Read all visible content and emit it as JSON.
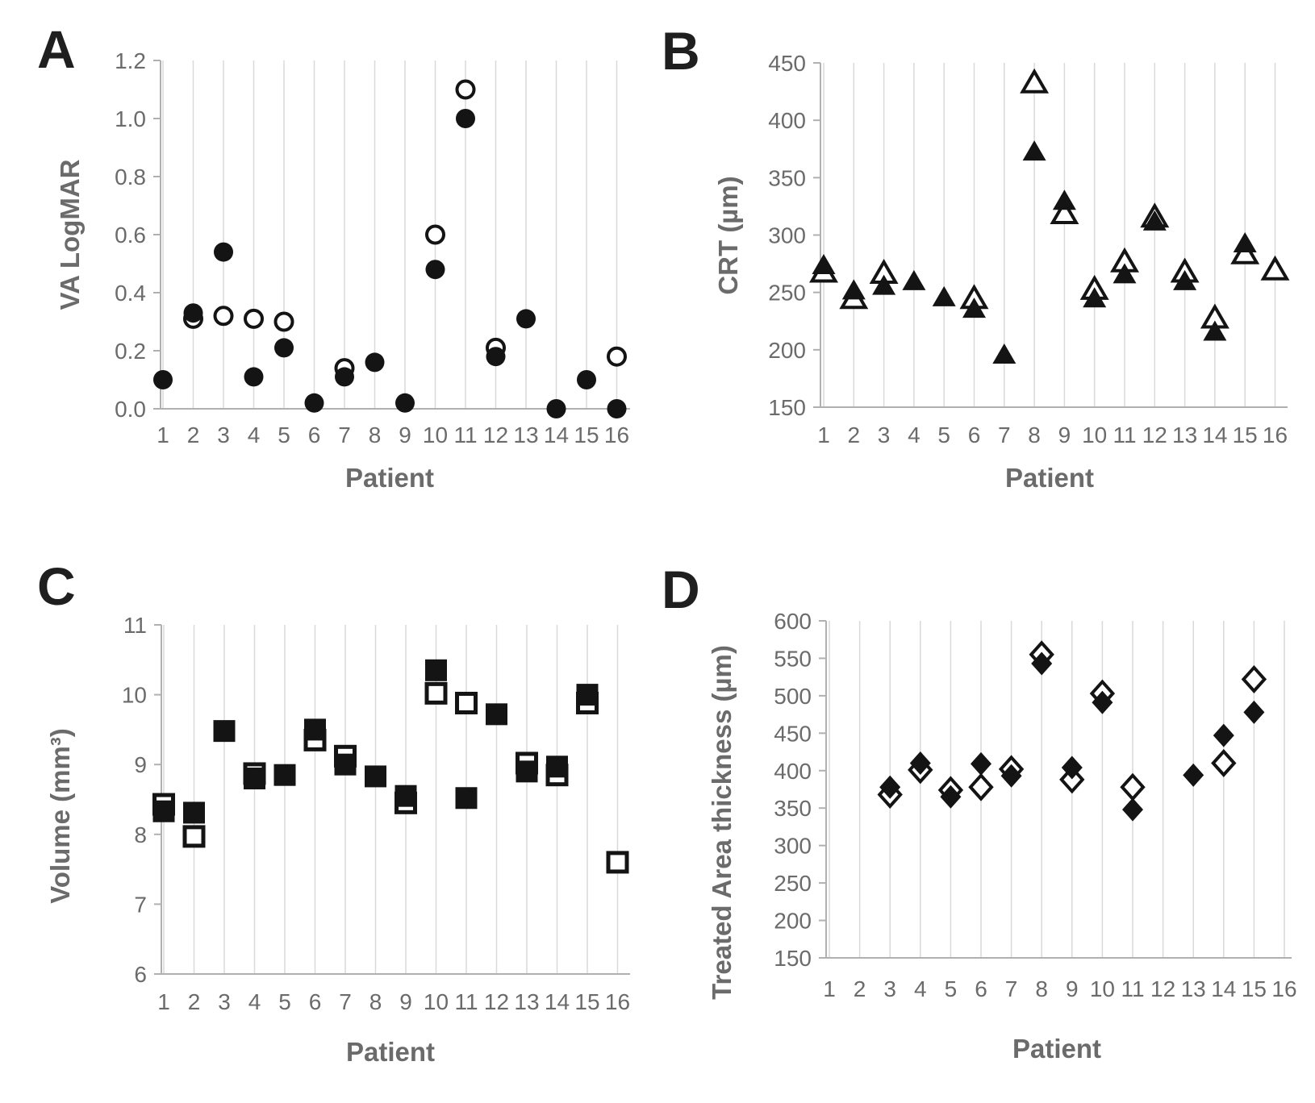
{
  "figure": {
    "background": "#ffffff",
    "marker_color": "#141414",
    "grid_color": "#d9d9d9",
    "axis_color": "#b0b0b0",
    "text_color": "#6b6b6b"
  },
  "chart_data": [
    {
      "id": "A",
      "panel_label": "A",
      "type": "scatter",
      "marker": "circle",
      "xlabel": "Patient",
      "ylabel": "VA LogMAR",
      "ylim": [
        0.0,
        1.2
      ],
      "grid": "vertical-only",
      "legend": "none",
      "yticks": [
        {
          "v": 0.0,
          "label": "0.0"
        },
        {
          "v": 0.2,
          "label": "0.2"
        },
        {
          "v": 0.4,
          "label": "0.4"
        },
        {
          "v": 0.6,
          "label": "0.6"
        },
        {
          "v": 0.8,
          "label": "0.8"
        },
        {
          "v": 1.0,
          "label": "1.0"
        },
        {
          "v": 1.2,
          "label": "1.2"
        }
      ],
      "categories": [
        "1",
        "2",
        "3",
        "4",
        "5",
        "6",
        "7",
        "8",
        "9",
        "10",
        "11",
        "12",
        "13",
        "14",
        "15",
        "16"
      ],
      "series": [
        {
          "name": "open",
          "marker_style": "open",
          "values": [
            null,
            0.31,
            0.32,
            0.31,
            0.3,
            null,
            0.14,
            null,
            null,
            0.6,
            1.1,
            0.21,
            null,
            null,
            null,
            0.18
          ]
        },
        {
          "name": "filled",
          "marker_style": "filled",
          "values": [
            0.1,
            0.33,
            0.54,
            0.11,
            0.21,
            0.02,
            0.11,
            0.16,
            0.02,
            0.48,
            1.0,
            0.18,
            0.31,
            0.0,
            0.1,
            0.0
          ]
        }
      ]
    },
    {
      "id": "B",
      "panel_label": "B",
      "type": "scatter",
      "marker": "triangle",
      "xlabel": "Patient",
      "ylabel": "CRT (µm)",
      "ylim": [
        150,
        450
      ],
      "grid": "vertical-only",
      "legend": "none",
      "yticks": [
        {
          "v": 150,
          "label": "150"
        },
        {
          "v": 200,
          "label": "200"
        },
        {
          "v": 250,
          "label": "250"
        },
        {
          "v": 300,
          "label": "300"
        },
        {
          "v": 350,
          "label": "350"
        },
        {
          "v": 400,
          "label": "400"
        },
        {
          "v": 450,
          "label": "450"
        }
      ],
      "categories": [
        "1",
        "2",
        "3",
        "4",
        "5",
        "6",
        "7",
        "8",
        "9",
        "10",
        "11",
        "12",
        "13",
        "14",
        "15",
        "16"
      ],
      "series": [
        {
          "name": "open",
          "marker_style": "open",
          "values": [
            268,
            245,
            267,
            null,
            null,
            245,
            null,
            433,
            319,
            253,
            277,
            316,
            268,
            228,
            284,
            270
          ]
        },
        {
          "name": "filled",
          "marker_style": "filled",
          "values": [
            274,
            252,
            256,
            260,
            246,
            236,
            196,
            373,
            330,
            245,
            266,
            312,
            260,
            216,
            293,
            null
          ]
        }
      ]
    },
    {
      "id": "C",
      "panel_label": "C",
      "type": "scatter",
      "marker": "square",
      "xlabel": "Patient",
      "ylabel": "Volume (mm³)",
      "ylim": [
        6,
        11
      ],
      "grid": "vertical-only",
      "legend": "none",
      "yticks": [
        {
          "v": 6,
          "label": "6"
        },
        {
          "v": 7,
          "label": "7"
        },
        {
          "v": 8,
          "label": "8"
        },
        {
          "v": 9,
          "label": "9"
        },
        {
          "v": 10,
          "label": "10"
        },
        {
          "v": 11,
          "label": "11"
        }
      ],
      "categories": [
        "1",
        "2",
        "3",
        "4",
        "5",
        "6",
        "7",
        "8",
        "9",
        "10",
        "11",
        "12",
        "13",
        "14",
        "15",
        "16"
      ],
      "series": [
        {
          "name": "open",
          "marker_style": "open",
          "values": [
            8.43,
            7.97,
            null,
            8.87,
            null,
            9.35,
            9.12,
            null,
            8.45,
            10.02,
            9.88,
            null,
            9.02,
            8.85,
            9.88,
            7.6
          ]
        },
        {
          "name": "filled",
          "marker_style": "filled",
          "values": [
            8.33,
            8.31,
            9.48,
            8.8,
            8.85,
            9.5,
            9.0,
            8.83,
            8.55,
            10.35,
            8.52,
            9.72,
            8.9,
            8.97,
            10.0,
            null
          ]
        }
      ]
    },
    {
      "id": "D",
      "panel_label": "D",
      "type": "scatter",
      "marker": "diamond",
      "xlabel": "Patient",
      "ylabel": "Treated Area thickness  (µm)",
      "ylim": [
        150,
        600
      ],
      "grid": "vertical-only",
      "legend": "none",
      "yticks": [
        {
          "v": 150,
          "label": "150"
        },
        {
          "v": 200,
          "label": "200"
        },
        {
          "v": 250,
          "label": "250"
        },
        {
          "v": 300,
          "label": "300"
        },
        {
          "v": 350,
          "label": "350"
        },
        {
          "v": 400,
          "label": "400"
        },
        {
          "v": 450,
          "label": "450"
        },
        {
          "v": 500,
          "label": "500"
        },
        {
          "v": 550,
          "label": "550"
        },
        {
          "v": 600,
          "label": "600"
        }
      ],
      "categories": [
        "1",
        "2",
        "3",
        "4",
        "5",
        "6",
        "7",
        "8",
        "9",
        "10",
        "11",
        "12",
        "13",
        "14",
        "15",
        "16"
      ],
      "series": [
        {
          "name": "open",
          "marker_style": "open",
          "values": [
            null,
            null,
            368,
            401,
            374,
            378,
            402,
            555,
            388,
            503,
            378,
            null,
            null,
            410,
            522,
            null
          ]
        },
        {
          "name": "filled",
          "marker_style": "filled",
          "values": [
            null,
            null,
            378,
            410,
            365,
            409,
            393,
            543,
            404,
            491,
            348,
            null,
            394,
            447,
            478,
            null
          ]
        }
      ]
    }
  ]
}
